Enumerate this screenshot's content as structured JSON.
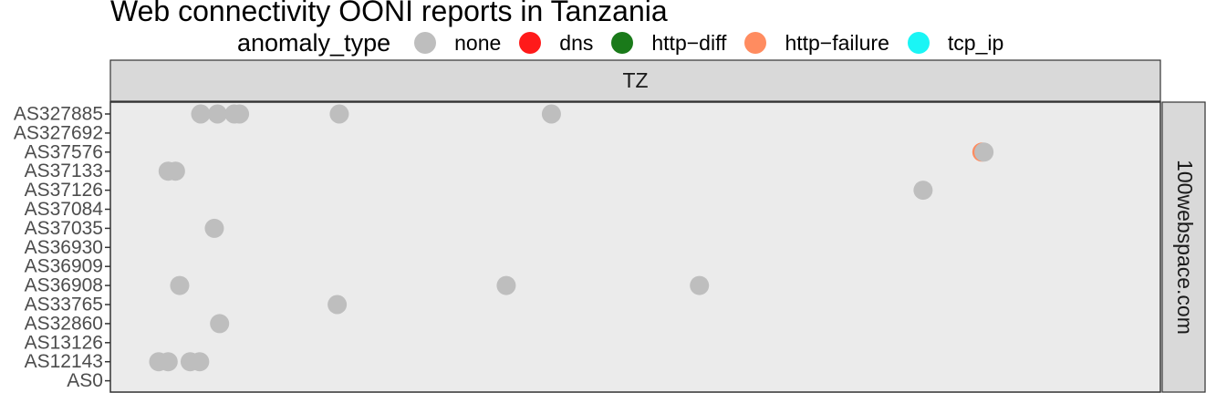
{
  "chart_data": {
    "type": "scatter",
    "title": "Web connectivity OONI reports in Tanzania",
    "legend": {
      "title": "anomaly_type",
      "placement": "top",
      "entries": [
        {
          "label": "none",
          "color": "#bebebe"
        },
        {
          "label": "dns",
          "color": "#ff1a1a"
        },
        {
          "label": "http−diff",
          "color": "#1a7a1a"
        },
        {
          "label": "http−failure",
          "color": "#ff8c60"
        },
        {
          "label": "tcp_ip",
          "color": "#1af5f5"
        }
      ]
    },
    "facet_column": "TZ",
    "facet_row": "100webspace.com",
    "y_categories": [
      "AS327885",
      "AS327692",
      "AS37576",
      "AS37133",
      "AS37126",
      "AS37084",
      "AS37035",
      "AS36930",
      "AS36909",
      "AS36908",
      "AS33765",
      "AS32860",
      "AS13126",
      "AS12143",
      "AS0"
    ],
    "x_range": [
      0,
      1
    ],
    "grid": false,
    "panel_background": "#ebebeb",
    "strip_background": "#d9d9d9",
    "points": [
      {
        "y": "AS327885",
        "x": 0.086,
        "type": "none"
      },
      {
        "y": "AS327885",
        "x": 0.102,
        "type": "none"
      },
      {
        "y": "AS327885",
        "x": 0.118,
        "type": "none"
      },
      {
        "y": "AS327885",
        "x": 0.123,
        "type": "none"
      },
      {
        "y": "AS327885",
        "x": 0.218,
        "type": "none"
      },
      {
        "y": "AS327885",
        "x": 0.42,
        "type": "none"
      },
      {
        "y": "AS37576",
        "x": 0.83,
        "type": "http−failure"
      },
      {
        "y": "AS37576",
        "x": 0.832,
        "type": "none"
      },
      {
        "y": "AS37133",
        "x": 0.055,
        "type": "none"
      },
      {
        "y": "AS37133",
        "x": 0.062,
        "type": "none"
      },
      {
        "y": "AS37126",
        "x": 0.774,
        "type": "none"
      },
      {
        "y": "AS37035",
        "x": 0.099,
        "type": "none"
      },
      {
        "y": "AS36908",
        "x": 0.066,
        "type": "none"
      },
      {
        "y": "AS36908",
        "x": 0.377,
        "type": "none"
      },
      {
        "y": "AS36908",
        "x": 0.561,
        "type": "none"
      },
      {
        "y": "AS33765",
        "x": 0.216,
        "type": "none"
      },
      {
        "y": "AS32860",
        "x": 0.104,
        "type": "none"
      },
      {
        "y": "AS12143",
        "x": 0.046,
        "type": "none"
      },
      {
        "y": "AS12143",
        "x": 0.055,
        "type": "none"
      },
      {
        "y": "AS12143",
        "x": 0.076,
        "type": "none"
      },
      {
        "y": "AS12143",
        "x": 0.085,
        "type": "none"
      }
    ]
  }
}
